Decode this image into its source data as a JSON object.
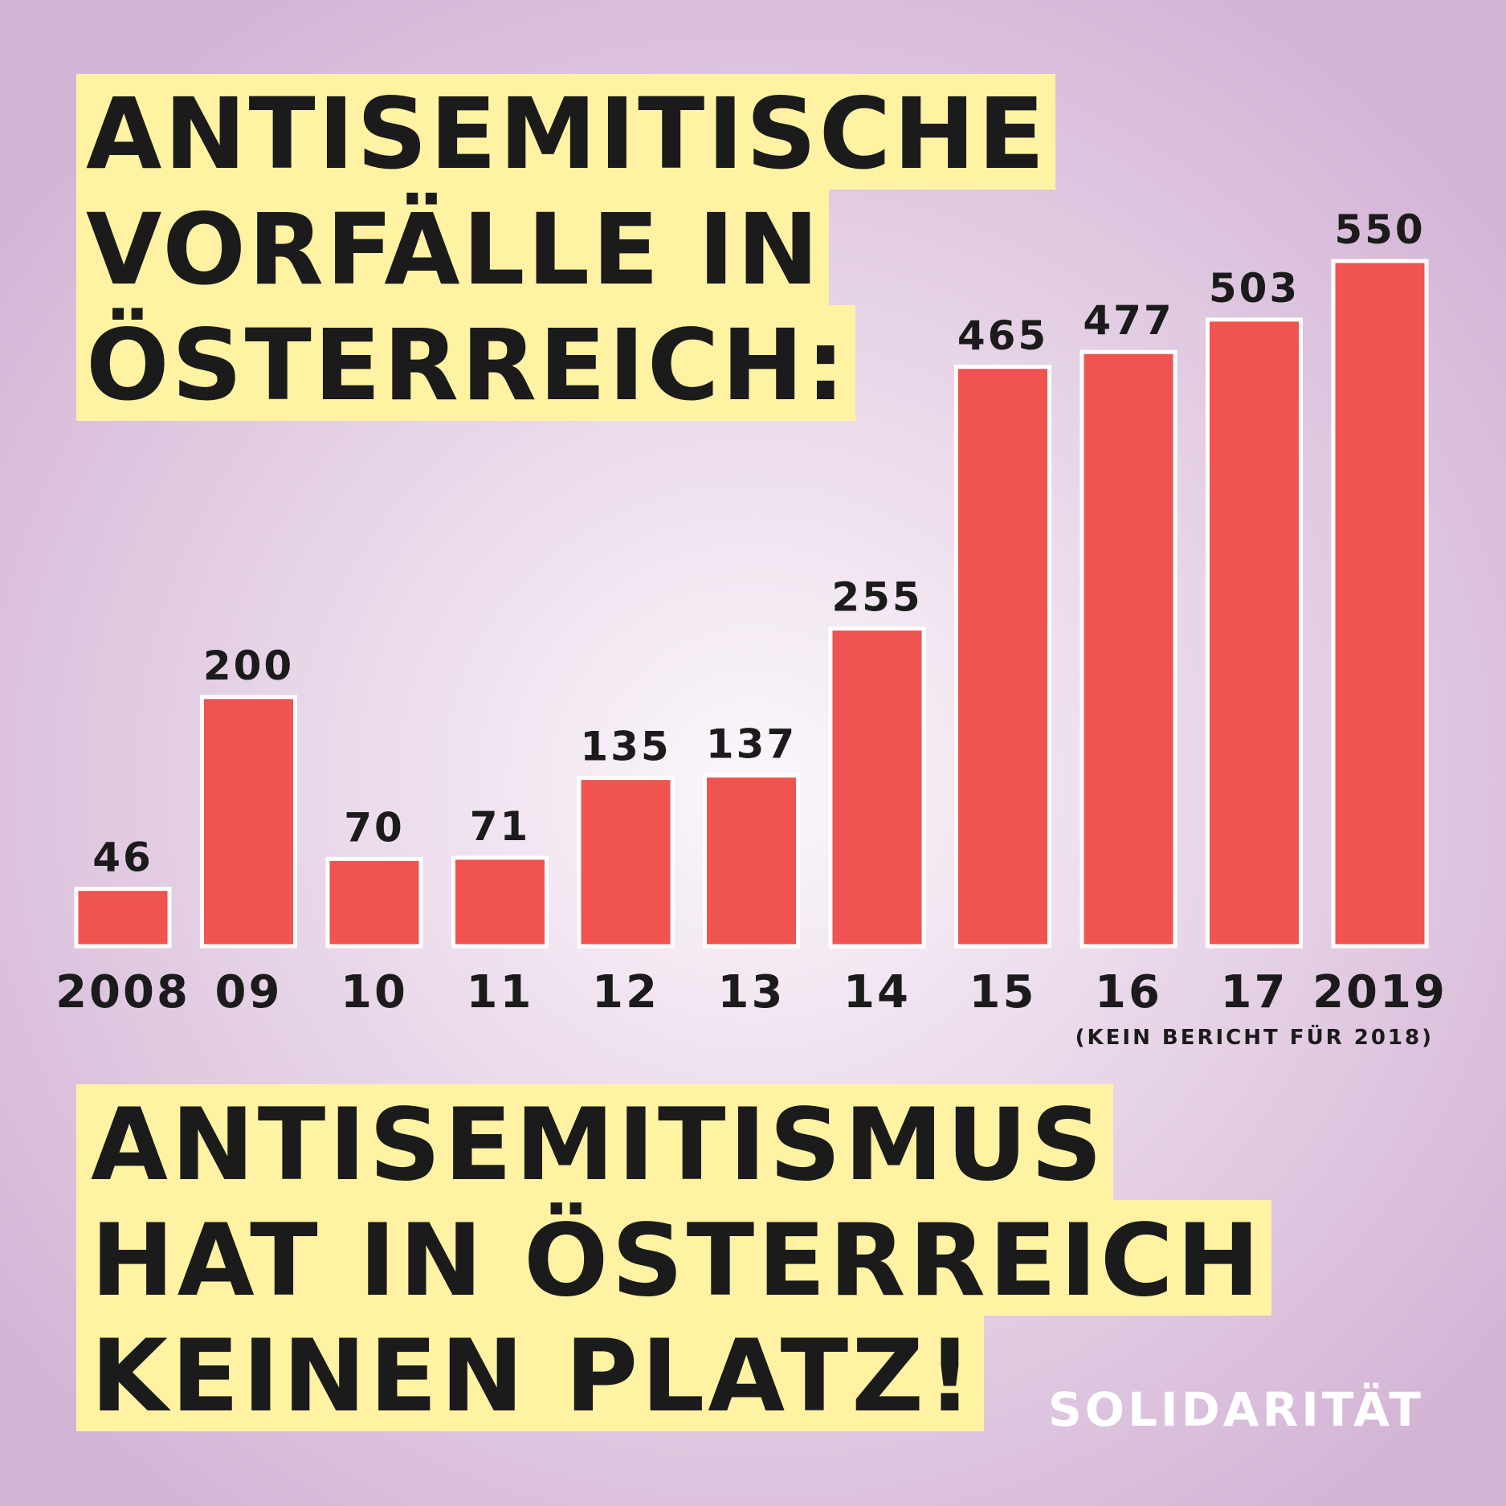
{
  "title_lines": [
    "ANTISEMITISCHE",
    "VORFÄLLE IN",
    "ÖSTERREICH:"
  ],
  "slogan_lines": [
    "ANTISEMITISMUS",
    "HAT IN ÖSTERREICH",
    "KEINEN PLATZ!"
  ],
  "logo": "SOLIDARITÄT",
  "colors": {
    "bar": "#f05350",
    "bar_outline": "#ffffff",
    "highlight": "#fff3a3",
    "text": "#1b1b1b",
    "background_center": "#fbf7fb",
    "background_edge": "#d4b5d6"
  },
  "chart_data": {
    "type": "bar",
    "title": "ANTISEMITISCHE VORFÄLLE IN ÖSTERREICH:",
    "categories": [
      "2008",
      "09",
      "10",
      "11",
      "12",
      "13",
      "14",
      "15",
      "16",
      "17",
      "2019"
    ],
    "values": [
      46,
      200,
      70,
      71,
      135,
      137,
      255,
      465,
      477,
      503,
      550
    ],
    "data_labels": true,
    "note": "(KEIN BERICHT FÜR 2018)",
    "xlabel": "",
    "ylabel": "",
    "ylim": [
      0,
      550
    ],
    "grid": false,
    "legend": "none"
  }
}
